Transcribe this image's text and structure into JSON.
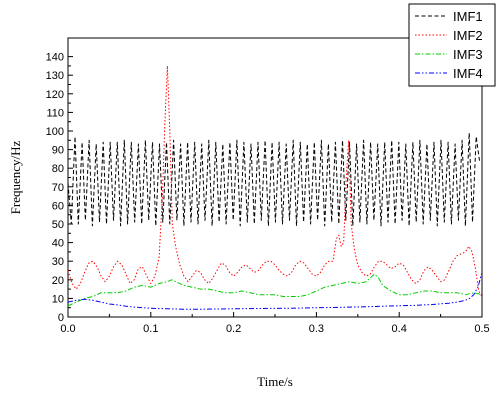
{
  "chart_data": {
    "type": "line",
    "xlabel": "Time/s",
    "ylabel": "Frequency/Hz",
    "xlim": [
      0.0,
      0.5
    ],
    "ylim": [
      0,
      150
    ],
    "x_ticks": [
      0.0,
      0.1,
      0.2,
      0.3,
      0.4,
      0.5
    ],
    "x_tick_labels": [
      "0.0",
      "0.1",
      "0.2",
      "0.3",
      "0.4",
      "0.5"
    ],
    "y_ticks": [
      0,
      10,
      20,
      30,
      40,
      50,
      60,
      70,
      80,
      90,
      100,
      110,
      120,
      130,
      140
    ],
    "y_tick_labels": [
      "0",
      "10",
      "20",
      "30",
      "40",
      "50",
      "60",
      "70",
      "80",
      "90",
      "100",
      "110",
      "120",
      "130",
      "140"
    ],
    "grid": false,
    "legend_position": "top-right",
    "series": [
      {
        "name": "IMF1",
        "color": "#000000",
        "dash": "dashed",
        "x": [
          0.0,
          0.004,
          0.0085,
          0.0125,
          0.017,
          0.021,
          0.0255,
          0.0295,
          0.034,
          0.038,
          0.0425,
          0.0465,
          0.051,
          0.055,
          0.0595,
          0.0635,
          0.068,
          0.072,
          0.0765,
          0.0805,
          0.085,
          0.089,
          0.0935,
          0.0975,
          0.102,
          0.106,
          0.1105,
          0.1145,
          0.119,
          0.123,
          0.1275,
          0.1315,
          0.136,
          0.14,
          0.1445,
          0.1485,
          0.153,
          0.157,
          0.1615,
          0.1655,
          0.17,
          0.174,
          0.1785,
          0.1825,
          0.187,
          0.191,
          0.1955,
          0.1995,
          0.204,
          0.208,
          0.2125,
          0.2165,
          0.221,
          0.225,
          0.2295,
          0.2335,
          0.238,
          0.242,
          0.2465,
          0.2505,
          0.255,
          0.259,
          0.2635,
          0.2675,
          0.272,
          0.276,
          0.2805,
          0.2845,
          0.289,
          0.293,
          0.2975,
          0.3015,
          0.306,
          0.31,
          0.3145,
          0.3185,
          0.323,
          0.327,
          0.3315,
          0.3355,
          0.34,
          0.344,
          0.3485,
          0.3525,
          0.357,
          0.361,
          0.3655,
          0.3695,
          0.374,
          0.378,
          0.3825,
          0.3865,
          0.391,
          0.395,
          0.3995,
          0.4035,
          0.408,
          0.412,
          0.4165,
          0.4205,
          0.425,
          0.429,
          0.4335,
          0.4375,
          0.442,
          0.446,
          0.4505,
          0.4545,
          0.459,
          0.463,
          0.4675,
          0.4715,
          0.476,
          0.48,
          0.4845,
          0.4885,
          0.493,
          0.497
        ],
        "y": [
          72,
          50,
          97,
          50,
          94,
          52,
          95,
          49,
          93,
          51,
          94,
          50,
          94,
          52,
          94,
          49,
          95,
          50,
          94,
          51,
          93,
          50,
          95,
          52,
          94,
          49,
          93,
          51,
          94,
          50,
          95,
          52,
          93,
          49,
          94,
          51,
          94,
          50,
          93,
          52,
          95,
          49,
          94,
          51,
          93,
          50,
          94,
          52,
          95,
          49,
          94,
          51,
          93,
          50,
          94,
          52,
          95,
          49,
          94,
          51,
          94,
          50,
          93,
          52,
          95,
          49,
          94,
          51,
          93,
          50,
          94,
          52,
          95,
          49,
          93,
          51,
          94,
          50,
          95,
          52,
          94,
          49,
          93,
          51,
          95,
          50,
          94,
          52,
          93,
          49,
          94,
          51,
          95,
          50,
          94,
          52,
          93,
          49,
          94,
          51,
          95,
          50,
          93,
          52,
          94,
          49,
          95,
          51,
          94,
          50,
          93,
          52,
          95,
          49,
          99,
          51,
          97,
          84
        ]
      },
      {
        "name": "IMF2",
        "color": "#ff0000",
        "dash": "dotted",
        "x": [
          0.0,
          0.005,
          0.01,
          0.015,
          0.02,
          0.025,
          0.03,
          0.035,
          0.04,
          0.045,
          0.05,
          0.055,
          0.06,
          0.065,
          0.07,
          0.075,
          0.08,
          0.085,
          0.09,
          0.095,
          0.1,
          0.105,
          0.11,
          0.114,
          0.117,
          0.12,
          0.123,
          0.126,
          0.13,
          0.135,
          0.14,
          0.145,
          0.15,
          0.155,
          0.16,
          0.165,
          0.17,
          0.175,
          0.18,
          0.185,
          0.19,
          0.195,
          0.2,
          0.205,
          0.21,
          0.215,
          0.22,
          0.225,
          0.23,
          0.235,
          0.24,
          0.245,
          0.25,
          0.255,
          0.26,
          0.265,
          0.27,
          0.275,
          0.28,
          0.285,
          0.29,
          0.295,
          0.3,
          0.305,
          0.31,
          0.315,
          0.32,
          0.324,
          0.327,
          0.33,
          0.333,
          0.336,
          0.339,
          0.342,
          0.346,
          0.35,
          0.355,
          0.36,
          0.365,
          0.37,
          0.375,
          0.38,
          0.385,
          0.39,
          0.395,
          0.4,
          0.405,
          0.41,
          0.415,
          0.42,
          0.425,
          0.43,
          0.435,
          0.44,
          0.445,
          0.45,
          0.455,
          0.46,
          0.465,
          0.47,
          0.475,
          0.48,
          0.484,
          0.488,
          0.492,
          0.496,
          0.5
        ],
        "y": [
          25,
          18,
          15,
          18,
          24,
          29,
          30,
          27,
          22,
          19,
          22,
          27,
          30,
          28,
          23,
          18,
          20,
          26,
          27,
          22,
          18,
          22,
          32,
          65,
          105,
          135,
          100,
          50,
          38,
          28,
          22,
          19,
          22,
          25,
          24,
          20,
          18,
          21,
          25,
          29,
          28,
          24,
          22,
          24,
          27,
          28,
          26,
          24,
          25,
          28,
          30,
          30,
          28,
          25,
          23,
          22,
          24,
          28,
          30,
          29,
          26,
          23,
          22,
          24,
          28,
          30,
          30,
          42,
          44,
          38,
          40,
          75,
          95,
          50,
          36,
          28,
          24,
          22,
          23,
          27,
          30,
          30,
          28,
          26,
          27,
          29,
          28,
          24,
          20,
          18,
          20,
          25,
          27,
          25,
          22,
          19,
          20,
          25,
          30,
          33,
          34,
          35,
          38,
          35,
          26,
          14,
          11
        ]
      },
      {
        "name": "IMF3",
        "color": "#00cc00",
        "dash": "dashdot",
        "x": [
          0.0,
          0.01,
          0.02,
          0.03,
          0.04,
          0.05,
          0.06,
          0.07,
          0.08,
          0.09,
          0.1,
          0.11,
          0.12,
          0.125,
          0.13,
          0.14,
          0.15,
          0.16,
          0.17,
          0.18,
          0.19,
          0.2,
          0.21,
          0.22,
          0.23,
          0.24,
          0.25,
          0.26,
          0.27,
          0.28,
          0.29,
          0.3,
          0.31,
          0.32,
          0.33,
          0.34,
          0.35,
          0.36,
          0.365,
          0.37,
          0.375,
          0.38,
          0.39,
          0.4,
          0.41,
          0.42,
          0.43,
          0.44,
          0.45,
          0.46,
          0.47,
          0.48,
          0.49,
          0.5
        ],
        "y": [
          6,
          8,
          10,
          11,
          13,
          13,
          13,
          14,
          16,
          17,
          16,
          18,
          19,
          20,
          19,
          17,
          16,
          15,
          15,
          14,
          13,
          13,
          14,
          13,
          12,
          12,
          12,
          11,
          11,
          11,
          12,
          14,
          16,
          17,
          18,
          19,
          18,
          19,
          21,
          23,
          21,
          17,
          14,
          12,
          12,
          13,
          14,
          14,
          13,
          13,
          13,
          12,
          13,
          12
        ]
      },
      {
        "name": "IMF4",
        "color": "#0000ff",
        "dash": "dashdotdot",
        "x": [
          0.0,
          0.01,
          0.02,
          0.03,
          0.04,
          0.05,
          0.06,
          0.07,
          0.08,
          0.09,
          0.1,
          0.12,
          0.14,
          0.16,
          0.18,
          0.2,
          0.22,
          0.24,
          0.26,
          0.28,
          0.3,
          0.32,
          0.34,
          0.36,
          0.38,
          0.4,
          0.42,
          0.44,
          0.46,
          0.47,
          0.48,
          0.485,
          0.49,
          0.495,
          0.5
        ],
        "y": [
          8,
          9,
          9.5,
          9,
          8,
          7,
          6.5,
          5.8,
          5.3,
          5,
          4.7,
          4.4,
          4.2,
          4.2,
          4.3,
          4.4,
          4.5,
          4.6,
          4.7,
          4.8,
          5,
          5.1,
          5.3,
          5.5,
          5.8,
          6,
          6.3,
          6.7,
          7.4,
          8,
          9,
          10,
          12,
          16,
          24
        ]
      }
    ]
  }
}
